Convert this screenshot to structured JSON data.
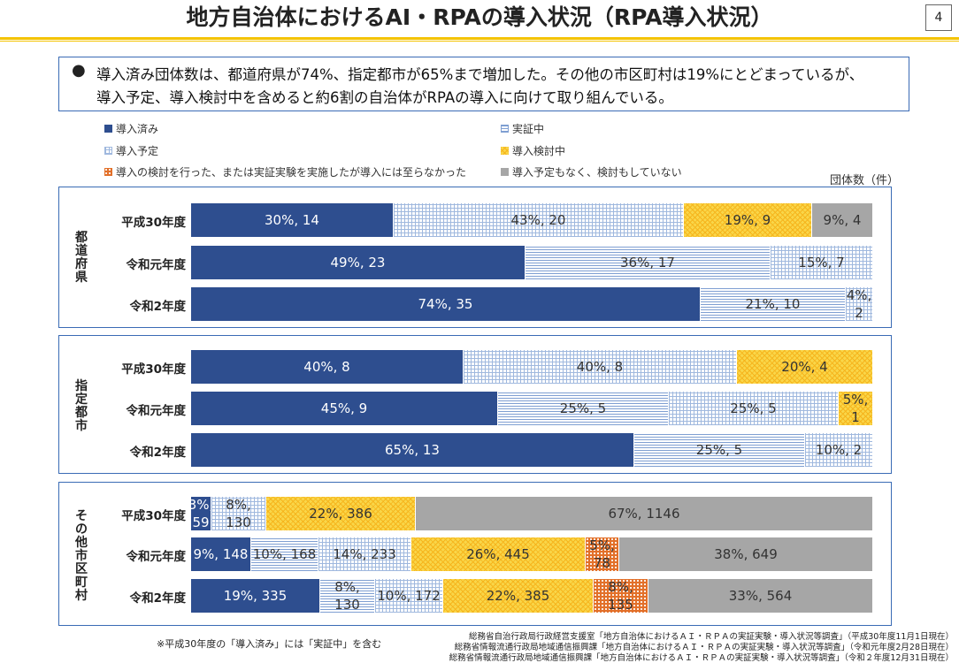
{
  "header": {
    "title": "地方自治体におけるAI・RPAの導入状況（RPA導入状況）",
    "page": "4"
  },
  "summary": {
    "bullet": "●",
    "line1": "導入済み団体数は、都道府県が74%、指定都市が65%まで増加した。その他の市区町村は19%にとどまっているが、",
    "line2": "導入予定、導入検討中を含めると約6割の自治体がRPAの導入に向けて取り組んでいる。"
  },
  "unit_label": "団体数（件）",
  "legend": [
    {
      "key": "done",
      "label": "導入済み",
      "color": "#2e4e8f"
    },
    {
      "key": "verify",
      "label": "実証中",
      "color": "#7f9fd2"
    },
    {
      "key": "plan",
      "label": "導入予定",
      "color": "#9fb8de"
    },
    {
      "key": "consider",
      "label": "導入検討中",
      "color": "#f9d649"
    },
    {
      "key": "stop",
      "label": "導入の検討を行った、または実証実験を実施したが導入には至らなかった",
      "color": "#e2702a"
    },
    {
      "key": "none",
      "label": "導入予定もなく、検討もしていない",
      "color": "#a6a6a6"
    }
  ],
  "chart_data": {
    "type": "bar",
    "orientation": "horizontal",
    "stacked": "100%",
    "series_keys": [
      "done",
      "verify",
      "plan",
      "consider",
      "stop",
      "none"
    ],
    "groups": [
      {
        "name": "都道府県",
        "rows": [
          {
            "category": "平成30年度",
            "segments": [
              {
                "key": "done",
                "pct": 30,
                "count": 14,
                "label": "30%, 14"
              },
              {
                "key": "plan",
                "pct": 43,
                "count": 20,
                "label": "43%, 20"
              },
              {
                "key": "consider",
                "pct": 19,
                "count": 9,
                "label": "19%, 9"
              },
              {
                "key": "none",
                "pct": 9,
                "count": 4,
                "label": "9%, 4"
              }
            ]
          },
          {
            "category": "令和元年度",
            "segments": [
              {
                "key": "done",
                "pct": 49,
                "count": 23,
                "label": "49%, 23"
              },
              {
                "key": "verify",
                "pct": 36,
                "count": 17,
                "label": "36%, 17"
              },
              {
                "key": "plan",
                "pct": 15,
                "count": 7,
                "label": "15%, 7"
              }
            ]
          },
          {
            "category": "令和2年度",
            "segments": [
              {
                "key": "done",
                "pct": 74,
                "count": 35,
                "label": "74%, 35"
              },
              {
                "key": "verify",
                "pct": 21,
                "count": 10,
                "label": "21%, 10"
              },
              {
                "key": "plan",
                "pct": 4,
                "count": 2,
                "label": "4%, 2"
              }
            ]
          }
        ]
      },
      {
        "name": "指定都市",
        "rows": [
          {
            "category": "平成30年度",
            "segments": [
              {
                "key": "done",
                "pct": 40,
                "count": 8,
                "label": "40%, 8"
              },
              {
                "key": "plan",
                "pct": 40,
                "count": 8,
                "label": "40%, 8"
              },
              {
                "key": "consider",
                "pct": 20,
                "count": 4,
                "label": "20%, 4"
              }
            ]
          },
          {
            "category": "令和元年度",
            "segments": [
              {
                "key": "done",
                "pct": 45,
                "count": 9,
                "label": "45%, 9"
              },
              {
                "key": "verify",
                "pct": 25,
                "count": 5,
                "label": "25%, 5"
              },
              {
                "key": "plan",
                "pct": 25,
                "count": 5,
                "label": "25%, 5"
              },
              {
                "key": "consider",
                "pct": 5,
                "count": 1,
                "label": "5%, 1"
              }
            ]
          },
          {
            "category": "令和2年度",
            "segments": [
              {
                "key": "done",
                "pct": 65,
                "count": 13,
                "label": "65%, 13"
              },
              {
                "key": "verify",
                "pct": 25,
                "count": 5,
                "label": "25%, 5"
              },
              {
                "key": "plan",
                "pct": 10,
                "count": 2,
                "label": "10%, 2"
              }
            ]
          }
        ]
      },
      {
        "name": "その他市区町村",
        "rows": [
          {
            "category": "平成30年度",
            "segments": [
              {
                "key": "done",
                "pct": 3,
                "count": 59,
                "label": "3%, 59"
              },
              {
                "key": "plan",
                "pct": 8,
                "count": 130,
                "label": "8%, 130"
              },
              {
                "key": "consider",
                "pct": 22,
                "count": 386,
                "label": "22%, 386"
              },
              {
                "key": "none",
                "pct": 67,
                "count": 1146,
                "label": "67%, 1146"
              }
            ]
          },
          {
            "category": "令和元年度",
            "segments": [
              {
                "key": "done",
                "pct": 9,
                "count": 148,
                "label": "9%, 148"
              },
              {
                "key": "verify",
                "pct": 10,
                "count": 168,
                "label": "10%, 168"
              },
              {
                "key": "plan",
                "pct": 14,
                "count": 233,
                "label": "14%, 233"
              },
              {
                "key": "consider",
                "pct": 26,
                "count": 445,
                "label": "26%, 445"
              },
              {
                "key": "stop",
                "pct": 5,
                "count": 78,
                "label": "5%, 78"
              },
              {
                "key": "none",
                "pct": 38,
                "count": 649,
                "label": "38%, 649"
              }
            ]
          },
          {
            "category": "令和2年度",
            "segments": [
              {
                "key": "done",
                "pct": 19,
                "count": 335,
                "label": "19%, 335"
              },
              {
                "key": "verify",
                "pct": 8,
                "count": 130,
                "label": "8%, 130"
              },
              {
                "key": "plan",
                "pct": 10,
                "count": 172,
                "label": "10%, 172"
              },
              {
                "key": "consider",
                "pct": 22,
                "count": 385,
                "label": "22%, 385"
              },
              {
                "key": "stop",
                "pct": 8,
                "count": 135,
                "label": "8%, 135"
              },
              {
                "key": "none",
                "pct": 33,
                "count": 564,
                "label": "33%, 564"
              }
            ]
          }
        ]
      }
    ]
  },
  "footnote": "※平成30年度の「導入済み」には「実証中」を含む",
  "sources": [
    "総務省自治行政局行政経営支援室「地方自治体におけるＡＩ・ＲＰＡの実証実験・導入状況等調査」（平成30年度11月1日現在）",
    "総務省情報流通行政局地域通信振興課「地方自治体におけるＡＩ・ＲＰＡの実証実験・導入状況等調査」（令和元年度2月28日現在）",
    "総務省情報流通行政局地域通信振興課「地方自治体におけるＡＩ・ＲＰＡの実証実験・導入状況等調査」（令和２年度12月31日現在）"
  ]
}
